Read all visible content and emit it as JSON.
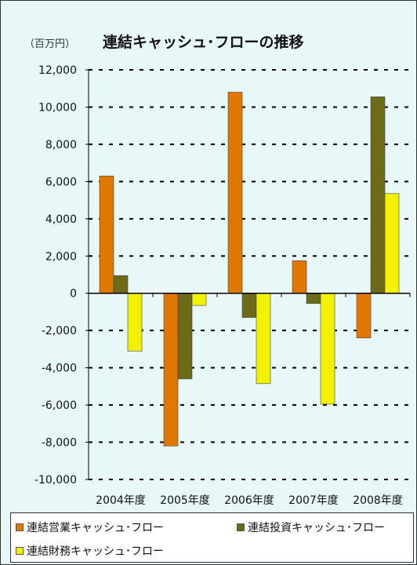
{
  "chart_data": {
    "type": "bar",
    "title": "連結キャッシュ･フローの推移",
    "unit_label": "（百万円）",
    "categories": [
      "2004年度",
      "2005年度",
      "2006年度",
      "2007年度",
      "2008年度"
    ],
    "series": [
      {
        "name": "連結営業キャッシュ･フロー",
        "color": "#e07800",
        "values": [
          6300,
          -8200,
          10800,
          1750,
          -2400
        ]
      },
      {
        "name": "連結投資キャッシュ･フロー",
        "color": "#6b6b1a",
        "values": [
          950,
          -4600,
          -1300,
          -550,
          10550
        ]
      },
      {
        "name": "連結財務キャッシュ･フロー",
        "color": "#f2f200",
        "values": [
          -3100,
          -650,
          -4850,
          -5950,
          5350
        ]
      }
    ],
    "yticks": [
      "12,000",
      "10,000",
      "8,000",
      "6,000",
      "4,000",
      "2,000",
      "0",
      "-2,000",
      "-4,000",
      "-6,000",
      "-8,000",
      "-10,000"
    ],
    "ylim": [
      -10000,
      12000
    ],
    "grid": true,
    "legend_position": "bottom"
  }
}
